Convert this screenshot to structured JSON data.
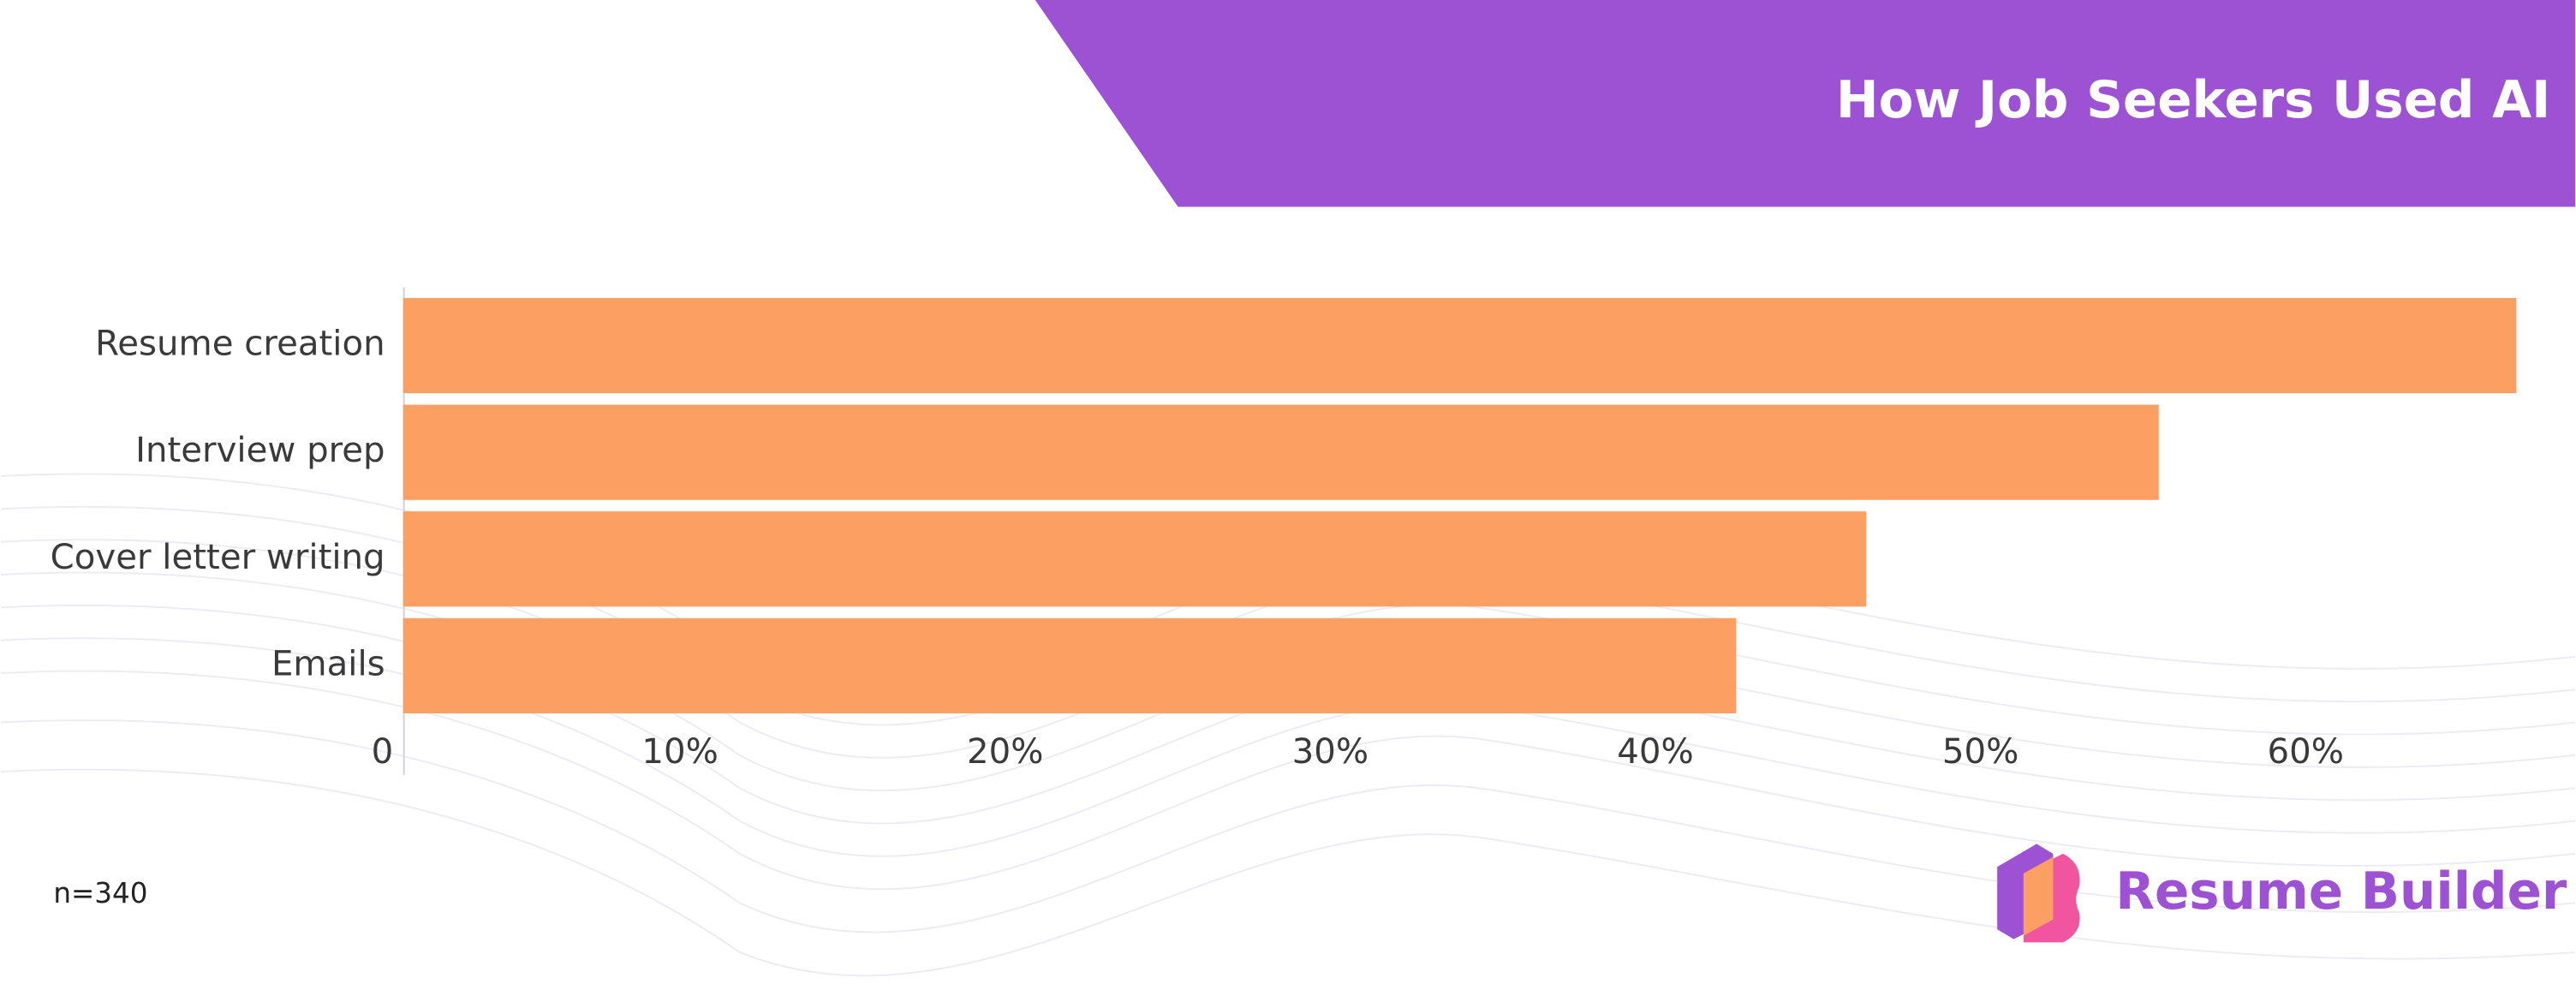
{
  "chart_data": {
    "type": "barh",
    "title": "How Job Seekers Used AI",
    "categories": [
      "Resume creation",
      "Interview prep",
      "Cover letter writing",
      "Emails"
    ],
    "values": [
      65,
      54,
      45,
      41
    ],
    "color": "#fc9f62",
    "xlim": [
      0,
      66
    ],
    "xticks": [
      0,
      {
        "value": 10,
        "label": "10%"
      },
      {
        "value": 20,
        "label": "20%"
      },
      {
        "value": 30,
        "label": "30%"
      },
      {
        "value": 40,
        "label": "40%"
      },
      {
        "value": 50,
        "label": "50%"
      },
      {
        "value": 60,
        "label": "60%"
      }
    ],
    "grid": false,
    "footnote": "n=340",
    "brand": "Resume Builder"
  }
}
